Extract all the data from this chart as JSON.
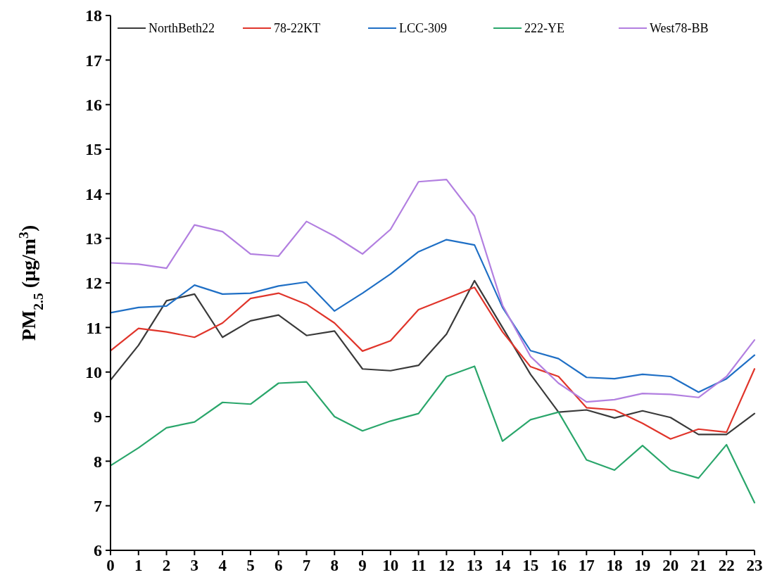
{
  "chart_data": {
    "type": "line",
    "ylabel": "PM$_{2.5}$ (μg/m$^{3}$)",
    "x": [
      0,
      1,
      2,
      3,
      4,
      5,
      6,
      7,
      8,
      9,
      10,
      11,
      12,
      13,
      14,
      15,
      16,
      17,
      18,
      19,
      20,
      21,
      22,
      23
    ],
    "xlim": [
      0,
      23
    ],
    "xticks": [
      0,
      1,
      2,
      3,
      4,
      5,
      6,
      7,
      8,
      9,
      10,
      11,
      12,
      13,
      14,
      15,
      16,
      17,
      18,
      19,
      20,
      21,
      22,
      23
    ],
    "ylim": [
      6,
      18
    ],
    "yticks": [
      6,
      7,
      8,
      9,
      10,
      11,
      12,
      13,
      14,
      15,
      16,
      17,
      18
    ],
    "legend": "top",
    "marker": "none",
    "line_style": "solid",
    "grid": false,
    "series": [
      {
        "name": "NorthBeth22",
        "color": "#3a3a3a",
        "values": [
          9.82,
          10.6,
          11.6,
          11.75,
          10.78,
          11.15,
          11.28,
          10.82,
          10.92,
          10.07,
          10.03,
          10.15,
          10.85,
          12.05,
          11.0,
          9.95,
          9.1,
          9.15,
          8.97,
          9.13,
          8.98,
          8.6,
          8.6,
          9.07
        ]
      },
      {
        "name": "78-22KT",
        "color": "#e0352b",
        "values": [
          10.48,
          10.98,
          10.9,
          10.78,
          11.1,
          11.65,
          11.77,
          11.52,
          11.1,
          10.47,
          10.7,
          11.4,
          11.65,
          11.9,
          10.9,
          10.12,
          9.9,
          9.2,
          9.15,
          8.85,
          8.5,
          8.72,
          8.65,
          10.07
        ]
      },
      {
        "name": "LCC-309",
        "color": "#1f6fc5",
        "values": [
          11.33,
          11.45,
          11.48,
          11.95,
          11.75,
          11.77,
          11.93,
          12.02,
          11.37,
          11.77,
          12.2,
          12.7,
          12.97,
          12.85,
          11.45,
          10.48,
          10.3,
          9.88,
          9.85,
          9.95,
          9.9,
          9.55,
          9.85,
          10.38
        ]
      },
      {
        "name": "222-YE",
        "color": "#2aa66b",
        "values": [
          7.9,
          8.3,
          8.75,
          8.88,
          9.32,
          9.28,
          9.75,
          9.78,
          9.0,
          8.68,
          8.9,
          9.07,
          9.9,
          10.13,
          8.45,
          8.93,
          9.1,
          8.03,
          7.8,
          8.35,
          7.8,
          7.62,
          8.37,
          7.07
        ]
      },
      {
        "name": "West78-BB",
        "color": "#b27fe0",
        "values": [
          12.45,
          12.42,
          12.33,
          13.3,
          13.15,
          12.65,
          12.6,
          13.38,
          13.05,
          12.65,
          13.2,
          14.27,
          14.32,
          13.5,
          11.5,
          10.35,
          9.75,
          9.33,
          9.38,
          9.52,
          9.5,
          9.43,
          9.9,
          10.72
        ]
      }
    ]
  }
}
